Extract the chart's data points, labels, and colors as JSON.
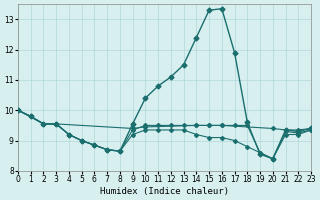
{
  "xlabel": "Humidex (Indice chaleur)",
  "ylabel": "",
  "background_color": "#d8eff0",
  "grid_color": "#b0d8da",
  "line_color": "#1a6e6e",
  "xlim": [
    0,
    23
  ],
  "ylim": [
    8,
    13.5
  ],
  "yticks": [
    8,
    9,
    10,
    11,
    12,
    13
  ],
  "xticks": [
    0,
    1,
    2,
    3,
    4,
    5,
    6,
    7,
    8,
    9,
    10,
    11,
    12,
    13,
    14,
    15,
    16,
    17,
    18,
    19,
    20,
    21,
    22,
    23
  ],
  "line1_x": [
    0,
    1,
    2,
    3,
    4,
    5,
    6,
    7,
    8,
    9,
    10,
    11,
    12,
    13,
    14,
    15,
    16,
    17,
    18,
    19,
    20,
    21,
    22,
    23
  ],
  "line1_y": [
    10.0,
    9.8,
    9.55,
    9.55,
    9.2,
    9.0,
    8.85,
    8.7,
    8.65,
    9.55,
    10.4,
    10.8,
    11.1,
    11.5,
    12.4,
    13.3,
    13.35,
    11.9,
    9.6,
    8.55,
    8.4,
    9.35,
    9.3,
    9.4
  ],
  "line2_x": [
    0,
    1,
    2,
    3,
    4,
    5,
    6,
    7,
    8,
    9,
    10,
    11,
    12,
    13,
    14,
    15,
    16,
    17,
    18,
    19,
    20,
    21,
    22,
    23
  ],
  "line2_y": [
    10.0,
    9.8,
    9.55,
    9.55,
    9.2,
    9.0,
    8.85,
    8.7,
    8.65,
    9.35,
    9.5,
    9.5,
    9.5,
    9.5,
    9.5,
    9.5,
    9.5,
    9.5,
    9.5,
    8.6,
    8.4,
    9.3,
    9.25,
    9.35
  ],
  "line3_x": [
    0,
    2,
    3,
    9,
    10,
    14,
    15,
    16,
    20,
    21,
    22,
    23
  ],
  "line3_y": [
    10.0,
    9.55,
    9.55,
    9.4,
    9.45,
    9.5,
    9.5,
    9.5,
    9.4,
    9.35,
    9.35,
    9.4
  ],
  "line4_x": [
    0,
    1,
    2,
    3,
    4,
    5,
    6,
    7,
    8,
    9,
    10,
    11,
    12,
    13,
    14,
    15,
    16,
    17,
    18,
    19,
    20,
    21,
    22,
    23
  ],
  "line4_y": [
    10.0,
    9.8,
    9.55,
    9.55,
    9.2,
    9.0,
    8.85,
    8.7,
    8.65,
    9.2,
    9.35,
    9.35,
    9.35,
    9.35,
    9.2,
    9.1,
    9.1,
    9.0,
    8.8,
    8.6,
    8.4,
    9.2,
    9.2,
    9.35
  ]
}
